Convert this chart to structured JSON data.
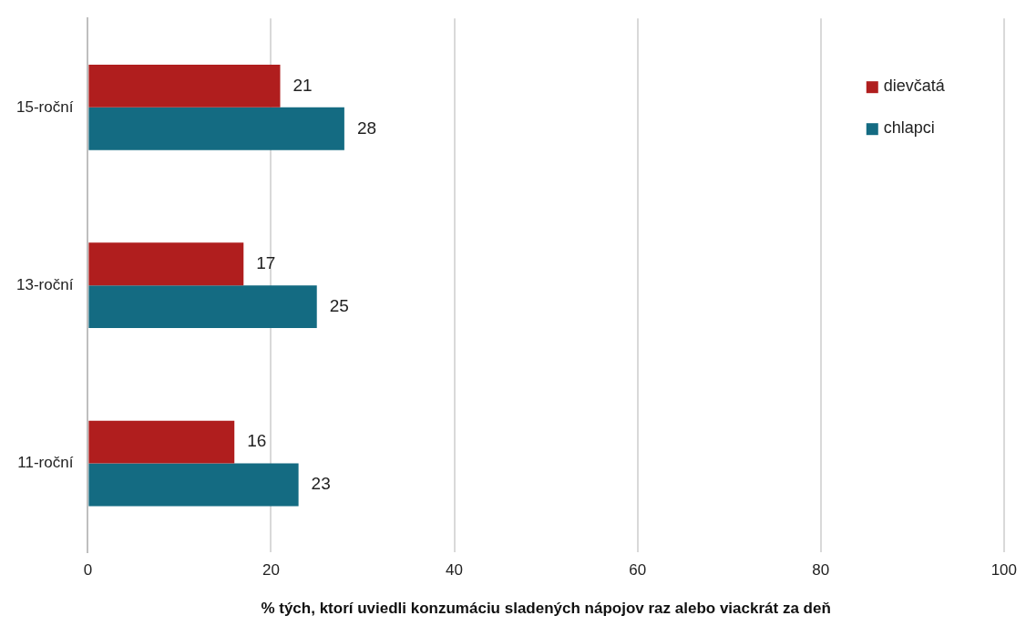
{
  "chart_data": {
    "type": "bar",
    "orientation": "horizontal",
    "xlabel": "% tých, ktorí uviedli konzumáciu sladených nápojov raz alebo viackrát za deň",
    "categories": [
      "15-roční",
      "13-roční",
      "11-roční"
    ],
    "series": [
      {
        "name": "dievčatá",
        "color": "#b01e1e",
        "values": [
          21,
          17,
          16
        ]
      },
      {
        "name": "chlapci",
        "color": "#146b82",
        "values": [
          28,
          25,
          23
        ]
      }
    ],
    "xlim": [
      0,
      100
    ],
    "xticks": [
      0,
      20,
      40,
      60,
      80,
      100
    ],
    "grid": "x",
    "legend": "top right",
    "data_labels": true
  }
}
